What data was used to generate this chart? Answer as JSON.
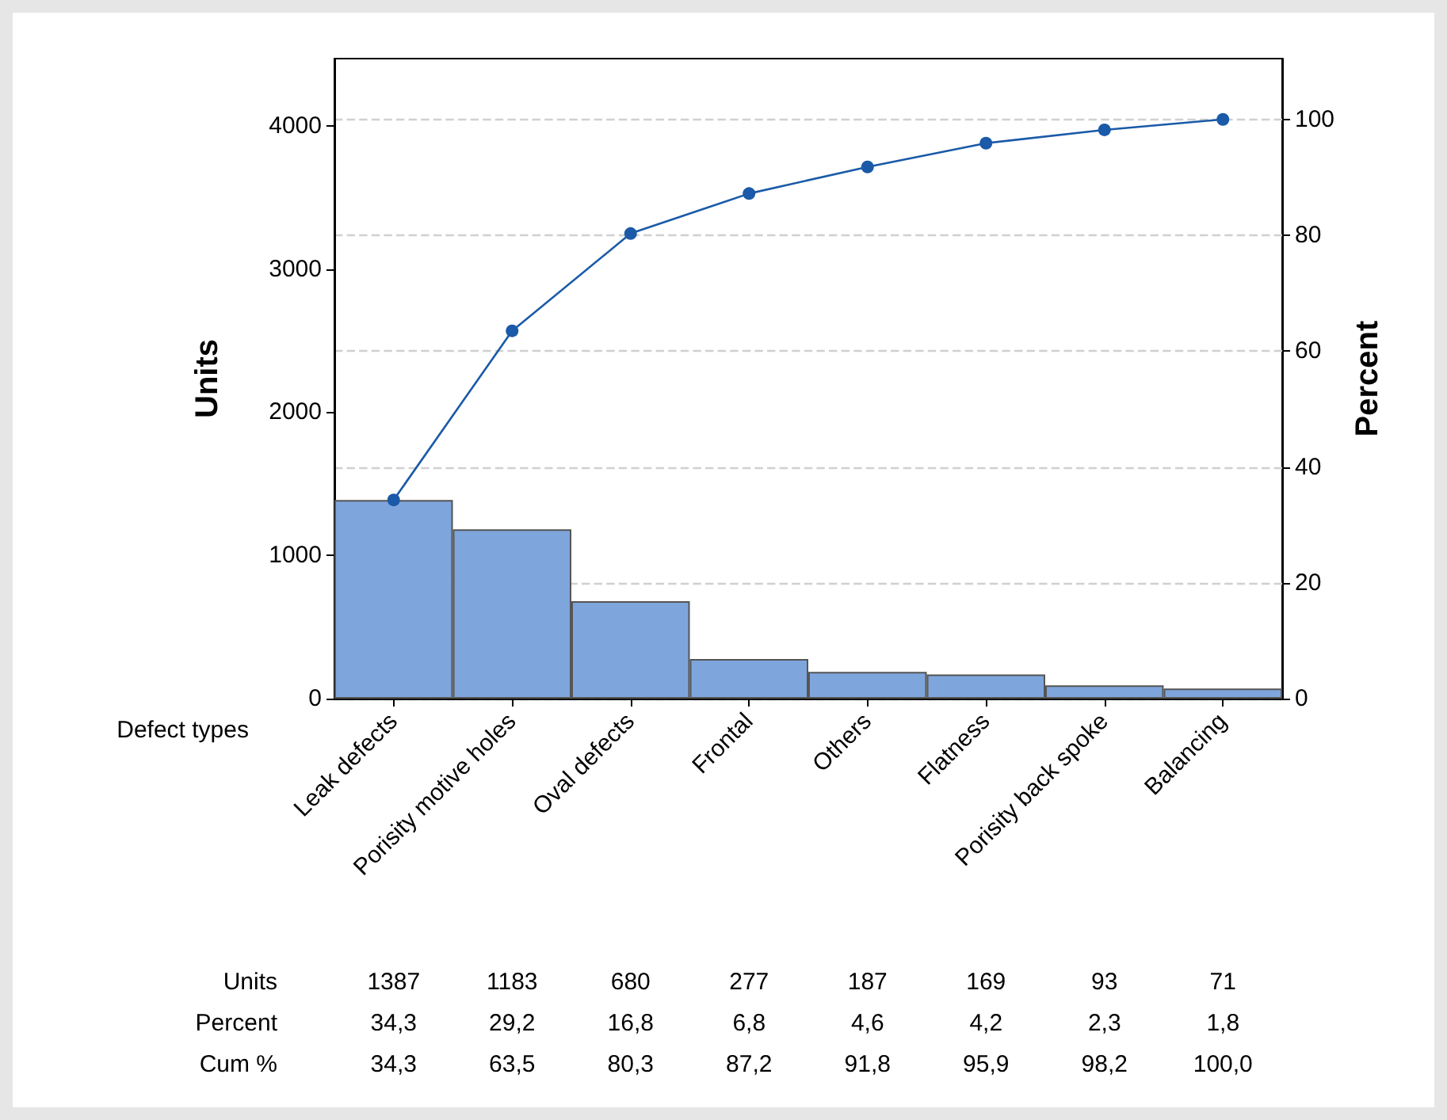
{
  "chart_data": {
    "type": "bar",
    "xlabel": "Defect types",
    "ylabel": "Units",
    "y2label": "Percent",
    "categories": [
      "Leak defects",
      "Porisity motive holes",
      "Oval defects",
      "Frontal",
      "Others",
      "Flatness",
      "Porisity back spoke",
      "Balancing"
    ],
    "series": [
      {
        "color": "#7ea6dc",
        "values": [
          1387,
          1183,
          680,
          277,
          187,
          169,
          93,
          71
        ],
        "value_labels": [
          "1387",
          "1183",
          "680",
          "277",
          "187",
          "169",
          "93",
          "71"
        ]
      },
      {
        "type": "line",
        "axis": "y2",
        "color": "#1a5aa8",
        "values": [
          34.3,
          63.5,
          80.3,
          87.2,
          91.8,
          95.9,
          98.2,
          100.0
        ],
        "value_labels": [
          "34,3",
          "63,5",
          "80,3",
          "87,2",
          "91,8",
          "95,9",
          "98,2",
          "100,0"
        ]
      }
    ],
    "annotations": [
      "Units",
      "Percent",
      "Cum %",
      "34,3",
      "29,2",
      "16,8",
      "6,8",
      "4,6",
      "4,2",
      "2,3",
      "1,8"
    ],
    "ylim": [
      0,
      4470
    ],
    "yticks": [
      0,
      1000,
      2000,
      3000,
      4000
    ],
    "y2lim": [
      0,
      110.5
    ],
    "y2ticks": [
      0,
      20,
      40,
      60,
      80,
      100
    ],
    "grid": "y",
    "marker": "circle"
  }
}
